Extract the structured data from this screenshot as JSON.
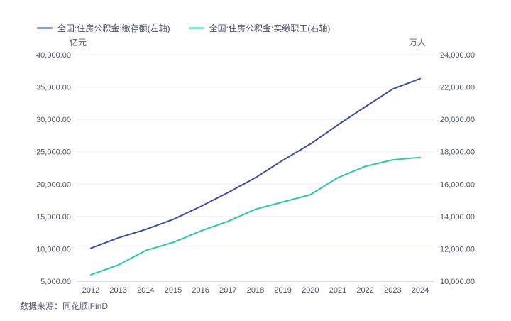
{
  "legend": {
    "items": [
      {
        "label": "全国:住房公积金:缴存额(左轴)"
      },
      {
        "label": "全国:住房公积金:实缴职工(右轴)"
      }
    ]
  },
  "source": "数据来源：同花顺iFinD",
  "colors": {
    "deposit_line": "#3b4d9e",
    "employees_line": "#2cc7a7",
    "gridline": "#ededf4",
    "axis_line": "#b9bfd3",
    "tick_text": "#4c5164",
    "legend_text": "#4a4f63",
    "unit_text": "#585d72",
    "source_text": "#585c6f"
  },
  "chart_data": {
    "type": "line",
    "categories": [
      2012,
      2013,
      2014,
      2015,
      2016,
      2017,
      2018,
      2019,
      2020,
      2021,
      2022,
      2023,
      2024
    ],
    "series": [
      {
        "name": "全国:住房公积金:缴存额(左轴)",
        "axis": "left",
        "color": "#3b4d9e",
        "values": [
          10100,
          11700,
          13000,
          14550,
          16550,
          18700,
          21000,
          23700,
          26200,
          29150,
          31950,
          34700,
          36300
        ]
      },
      {
        "name": "全国:住房公积金:实缴职工(右轴)",
        "axis": "right",
        "color": "#2cc7a7",
        "values": [
          10400,
          11000,
          11900,
          12400,
          13100,
          13700,
          14450,
          14900,
          15350,
          16400,
          17100,
          17500,
          17650
        ]
      }
    ],
    "left_axis": {
      "label": "亿元",
      "min": 5000,
      "max": 40000,
      "step": 5000
    },
    "right_axis": {
      "label": "万人",
      "min": 10000,
      "max": 24000,
      "step": 2000
    },
    "grid": true,
    "legend_position": "top",
    "xlabel": "",
    "title": ""
  }
}
